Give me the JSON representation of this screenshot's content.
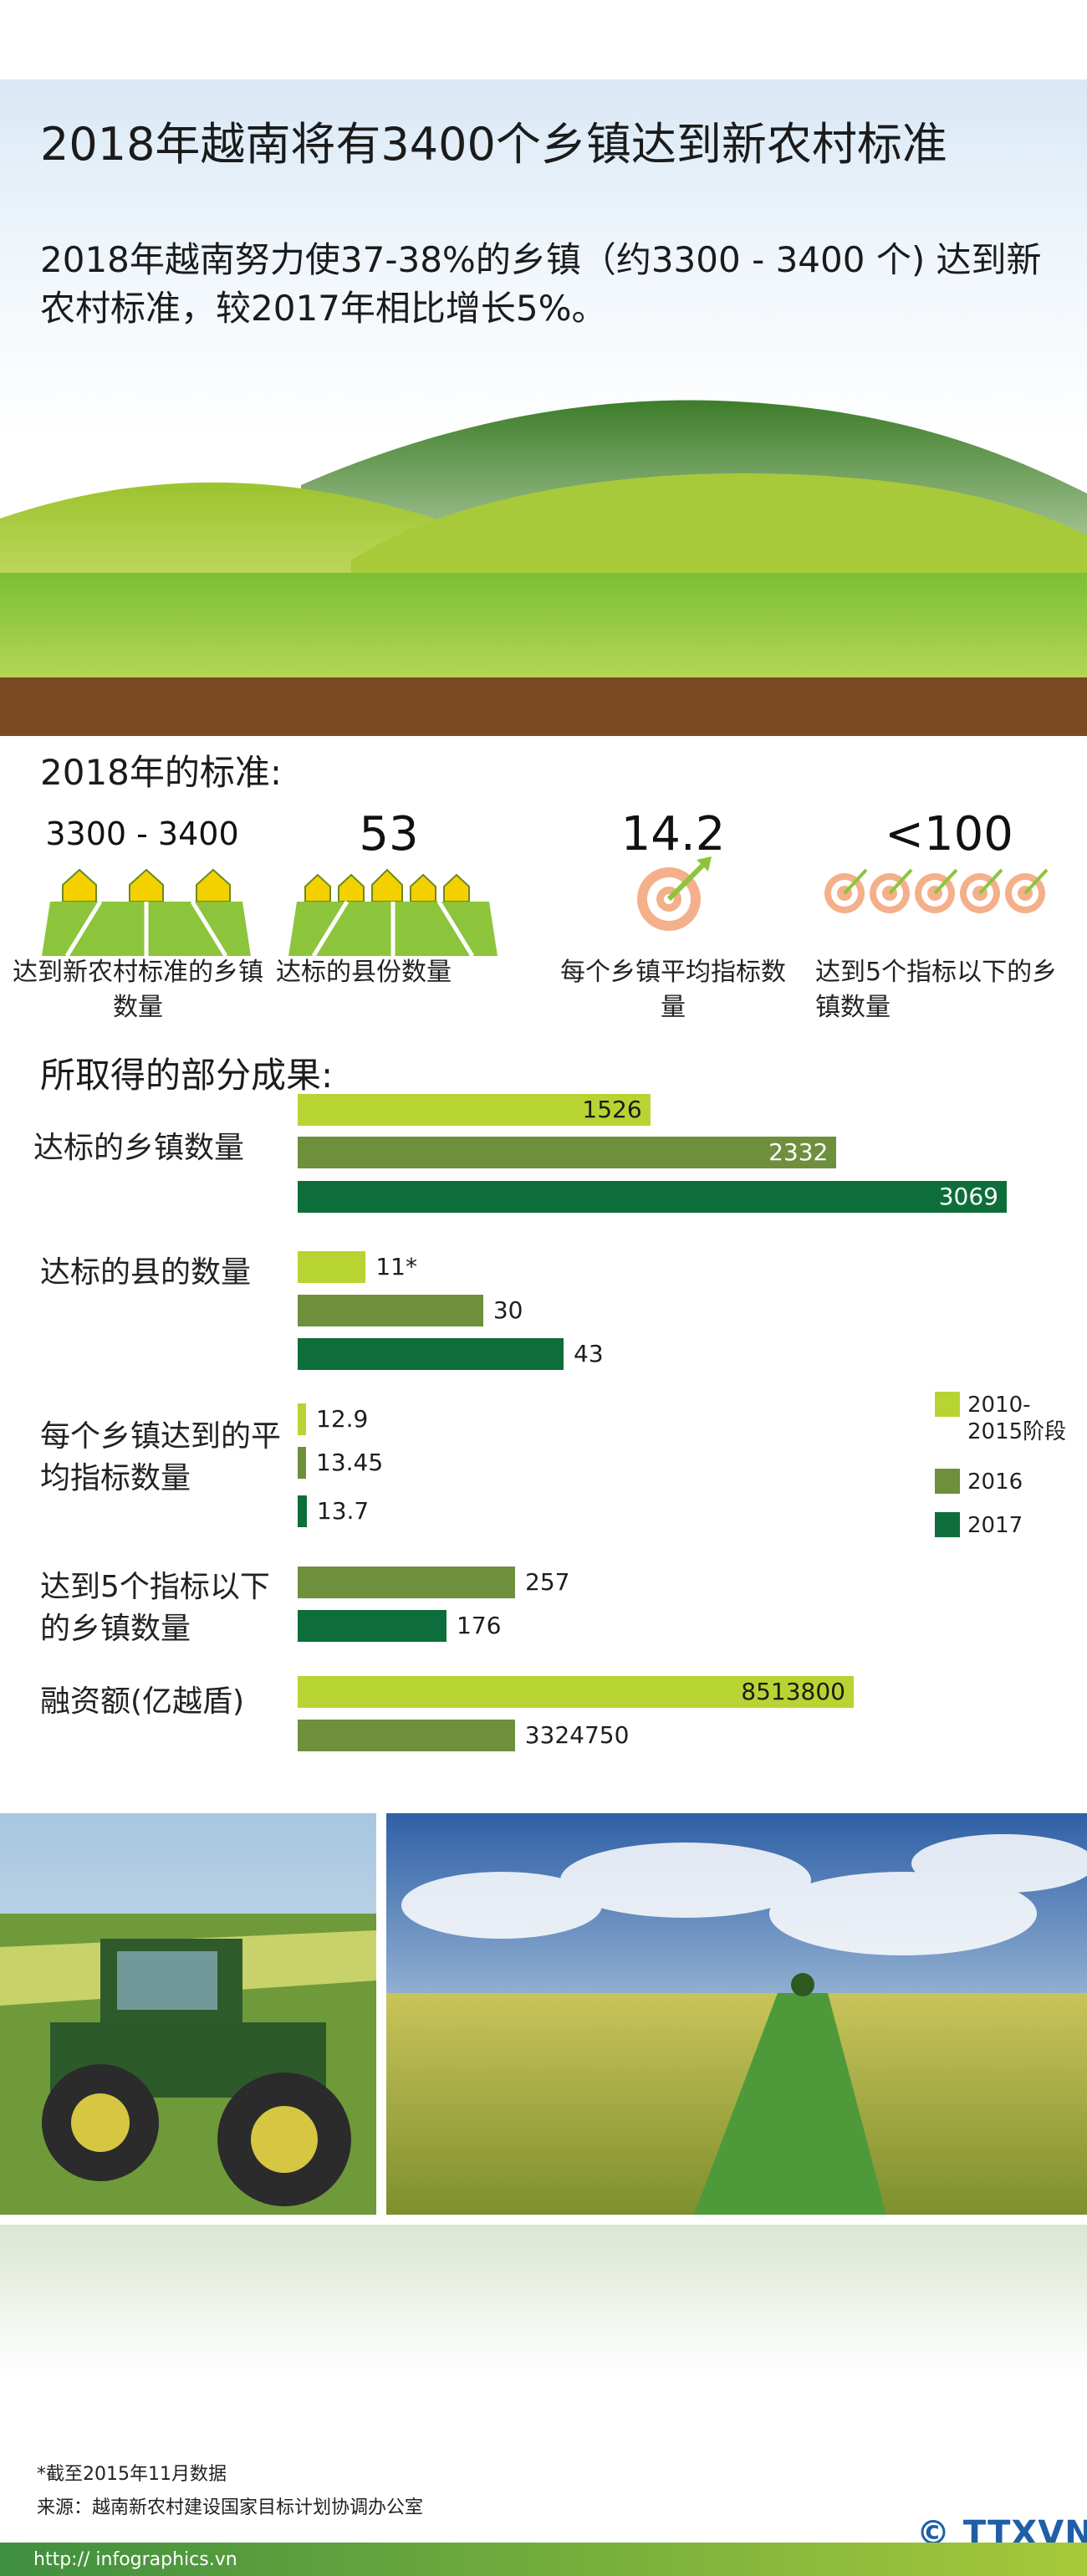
{
  "header": {
    "title": "2018年越南将有3400个乡镇达到新农村标准",
    "subtitle": "2018年越南努力使37-38%的乡镇（约3300 - 3400 个) 达到新农村标准，较2017年相比增长5%。"
  },
  "standards": {
    "heading": "2018年的标准:",
    "items": [
      {
        "value": "3300 - 3400",
        "caption": "达到新农村标准的乡镇数量"
      },
      {
        "value": "53",
        "caption": "达标的县份数量"
      },
      {
        "value": "14.2",
        "caption": "每个乡镇平均指标数量"
      },
      {
        "value": "<100",
        "caption": "达到5个指标以下的乡镇数量"
      }
    ]
  },
  "results": {
    "heading": "所取得的部分成果:"
  },
  "chart_data": {
    "type": "bar",
    "orientation": "horizontal",
    "title": "所取得的部分成果:",
    "legend_position": "right",
    "legend": [
      {
        "name": "2010-2015阶段",
        "color": "#b7d432"
      },
      {
        "name": "2016",
        "color": "#6e8f3c"
      },
      {
        "name": "2017",
        "color": "#0e6e3b"
      }
    ],
    "groups": [
      {
        "label": "达标的乡镇数量",
        "bars": [
          {
            "series": "2010-2015阶段",
            "value": 1526,
            "label": "1526"
          },
          {
            "series": "2016",
            "value": 2332,
            "label": "2332"
          },
          {
            "series": "2017",
            "value": 3069,
            "label": "3069"
          }
        ]
      },
      {
        "label": "达标的县的数量",
        "bars": [
          {
            "series": "2010-2015阶段",
            "value": 11,
            "label": "11*"
          },
          {
            "series": "2016",
            "value": 30,
            "label": "30"
          },
          {
            "series": "2017",
            "value": 43,
            "label": "43"
          }
        ]
      },
      {
        "label": "每个乡镇达到的平均指标数量",
        "bars": [
          {
            "series": "2010-2015阶段",
            "value": 12.9,
            "label": "12.9"
          },
          {
            "series": "2016",
            "value": 13.45,
            "label": "13.45"
          },
          {
            "series": "2017",
            "value": 13.7,
            "label": "13.7"
          }
        ]
      },
      {
        "label": "达到5个指标以下的乡镇数量",
        "bars": [
          {
            "series": "2016",
            "value": 257,
            "label": "257"
          },
          {
            "series": "2017",
            "value": 176,
            "label": "176"
          }
        ]
      },
      {
        "label": "融资额(亿越盾)",
        "bars": [
          {
            "series": "2010-2015阶段",
            "value": 8513800,
            "label": "8513800"
          },
          {
            "series": "2016",
            "value": 3324750,
            "label": "3324750"
          }
        ]
      }
    ]
  },
  "footer": {
    "note": "*截至2015年11月数据",
    "source": "来源：越南新农村建设国家目标计划协调办公室",
    "url": "http:// infographics.vn",
    "logo": "© TTXVN"
  },
  "colors": {
    "light_green": "#b7d432",
    "mid_green": "#6e8f3c",
    "dark_green": "#0e6e3b",
    "soil": "#7b4a22"
  }
}
